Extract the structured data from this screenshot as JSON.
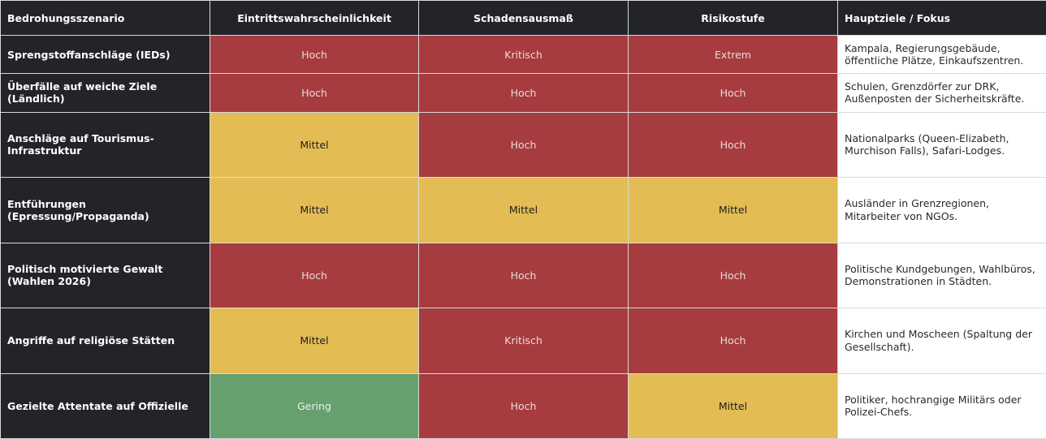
{
  "colors": {
    "header_bg": "#222429",
    "scenario_bg": "#222429",
    "level_red": "#a63c3f",
    "level_yellow": "#e3bd54",
    "level_green": "#66a06f",
    "focus_bg": "#ffffff"
  },
  "table": {
    "headers": [
      "Bedrohungsszenario",
      "Eintrittswahrscheinlichkeit",
      "Schadensausmaß",
      "Risikostufe",
      "Hauptziele / Fokus"
    ],
    "rows": [
      {
        "scenario": "Sprengstoffanschläge (IEDs)",
        "likelihood": "Hoch",
        "likelihood_color": "red",
        "impact": "Kritisch",
        "impact_color": "red",
        "risk": "Extrem",
        "risk_color": "red",
        "focus": "Kampala, Regierungsgebäude, öffentliche Plätze, Einkaufszentren."
      },
      {
        "scenario": "Überfälle auf weiche Ziele (Ländlich)",
        "likelihood": "Hoch",
        "likelihood_color": "red",
        "impact": "Hoch",
        "impact_color": "red",
        "risk": "Hoch",
        "risk_color": "red",
        "focus": "Schulen, Grenzdörfer zur DRK, Außenposten der Sicherheitskräfte."
      },
      {
        "scenario": "Anschläge auf Tourismus-Infrastruktur",
        "likelihood": "Mittel",
        "likelihood_color": "yellow",
        "impact": "Hoch",
        "impact_color": "red",
        "risk": "Hoch",
        "risk_color": "red",
        "focus": "Nationalparks (Queen-Elizabeth, Murchison Falls), Safari-Lodges."
      },
      {
        "scenario": "Entführungen (Epressung/Propaganda)",
        "likelihood": "Mittel",
        "likelihood_color": "yellow",
        "impact": "Mittel",
        "impact_color": "yellow",
        "risk": "Mittel",
        "risk_color": "yellow",
        "focus": "Ausländer in Grenzregionen, Mitarbeiter von NGOs."
      },
      {
        "scenario": "Politisch motivierte Gewalt (Wahlen 2026)",
        "likelihood": "Hoch",
        "likelihood_color": "red",
        "impact": "Hoch",
        "impact_color": "red",
        "risk": "Hoch",
        "risk_color": "red",
        "focus": "Politische Kundgebungen, Wahlbüros, Demonstrationen in Städten."
      },
      {
        "scenario": "Angriffe auf religiöse Stätten",
        "likelihood": "Mittel",
        "likelihood_color": "yellow",
        "impact": "Kritisch",
        "impact_color": "red",
        "risk": "Hoch",
        "risk_color": "red",
        "focus": "Kirchen und Moscheen (Spaltung der Gesellschaft)."
      },
      {
        "scenario": "Gezielte Attentate auf Offizielle",
        "likelihood": "Gering",
        "likelihood_color": "green",
        "impact": "Hoch",
        "impact_color": "red",
        "risk": "Mittel",
        "risk_color": "yellow",
        "focus": "Politiker, hochrangige Militärs oder Polizei-Chefs."
      }
    ]
  }
}
